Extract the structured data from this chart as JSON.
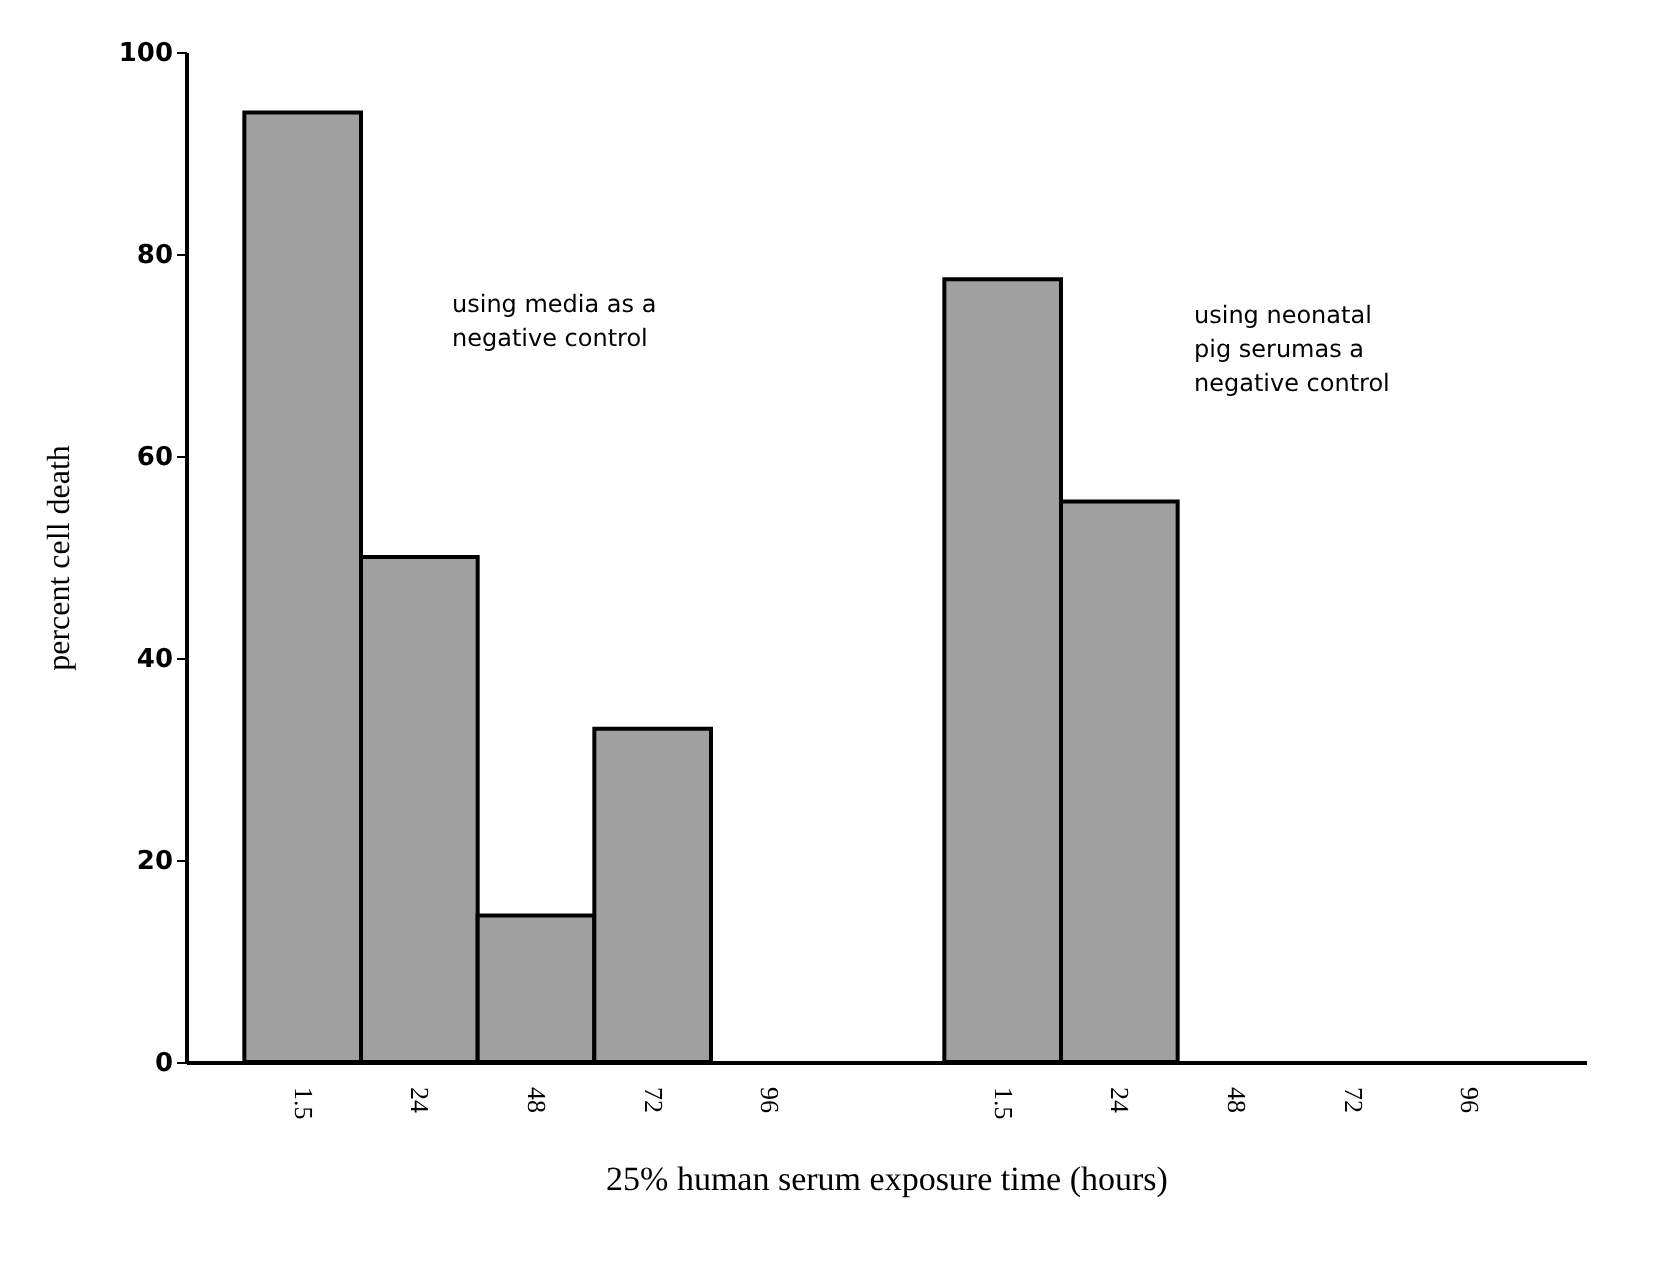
{
  "chart_data": {
    "type": "bar",
    "xlabel": "25% human serum exposure time (hours)",
    "ylabel": "percent cell death",
    "categories": [
      "1.5",
      "24",
      "48",
      "72",
      "96",
      null,
      "1.5",
      "24",
      "48",
      "72",
      "96"
    ],
    "values": [
      94,
      50,
      14.5,
      33,
      null,
      null,
      77.5,
      55.5,
      null,
      null,
      null
    ],
    "color": "#a0a0a0",
    "ylim": [
      0,
      100
    ],
    "yticks": [
      0,
      20,
      40,
      60,
      80,
      100
    ],
    "annotations": [
      "using media as a negative control",
      "using neonatal pig serumas a negative control"
    ]
  }
}
